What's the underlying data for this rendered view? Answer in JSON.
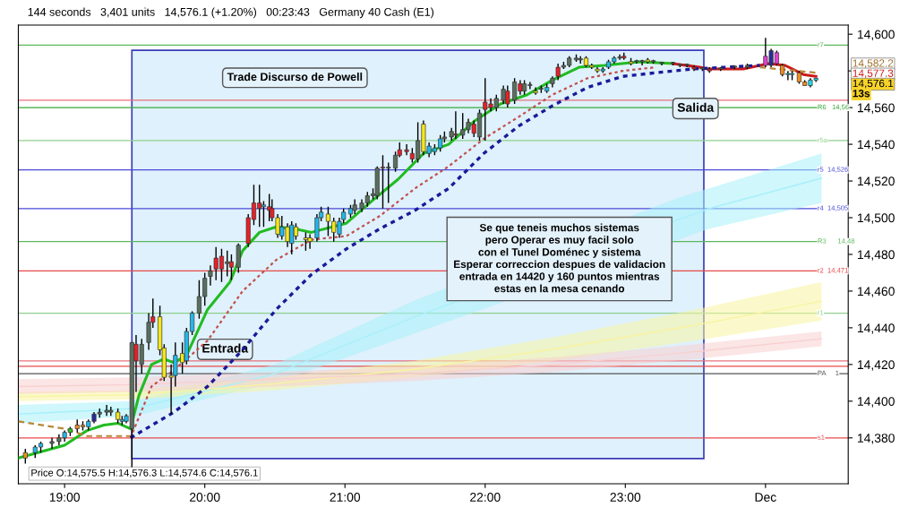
{
  "chart_data": {
    "type": "candlestick",
    "title": "144 seconds   3,401 units   14,576.1 (+1.20%)   00:23:43   Germany 40 Cash (E1)",
    "xlim": [
      18.67,
      24.59
    ],
    "ylim": [
      14355,
      14605
    ],
    "xticks": [
      {
        "value": 19,
        "label": "19:00"
      },
      {
        "value": 20,
        "label": "20:00"
      },
      {
        "value": 21,
        "label": "21:00"
      },
      {
        "value": 22,
        "label": "22:00"
      },
      {
        "value": 23,
        "label": "23:00"
      },
      {
        "value": 24,
        "label": "Dec"
      }
    ],
    "yticks": [
      {
        "value": 14380,
        "label": "14,380"
      },
      {
        "value": 14400,
        "label": "14,400"
      },
      {
        "value": 14420,
        "label": "14,420"
      },
      {
        "value": 14440,
        "label": "14,440"
      },
      {
        "value": 14460,
        "label": "14,460"
      },
      {
        "value": 14480,
        "label": "14,480"
      },
      {
        "value": 14500,
        "label": "14,500"
      },
      {
        "value": 14520,
        "label": "14,520"
      },
      {
        "value": 14540,
        "label": "14,540"
      },
      {
        "value": 14560,
        "label": "14,560"
      },
      {
        "value": 14580,
        "label": null
      },
      {
        "value": 14600,
        "label": "14,600"
      }
    ],
    "grid": false,
    "legend": false,
    "bands": [
      {
        "axis": "x",
        "from": 19.48,
        "to": 23.56,
        "label": "Trade Discurso de Powell",
        "color": "#dff1fc"
      }
    ],
    "ref_lines": [
      {
        "axis": "y",
        "value": 14594,
        "label": "r7",
        "color": "#5cb85c"
      },
      {
        "axis": "y",
        "value": 14564,
        "label": null,
        "color": "#e8707a"
      },
      {
        "axis": "y",
        "value": 14560,
        "label": "R6   14,56",
        "color": "#3aa83a"
      },
      {
        "axis": "y",
        "value": 14542,
        "label": "r5a",
        "color": "#8fd08f"
      },
      {
        "axis": "y",
        "value": 14526,
        "label": "r5  14,526",
        "color": "#4a4ad8"
      },
      {
        "axis": "y",
        "value": 14505,
        "label": "r4  14,505",
        "color": "#4a4ad8"
      },
      {
        "axis": "y",
        "value": 14487,
        "label": "R3      14,48",
        "color": "#5cb85c"
      },
      {
        "axis": "y",
        "value": 14471,
        "label": "r2  14,471",
        "color": "#e84a4a"
      },
      {
        "axis": "y",
        "value": 14448,
        "label": "r1",
        "color": "#8fd08f"
      },
      {
        "axis": "y",
        "value": 14422,
        "label": null,
        "color": "#e8707a"
      },
      {
        "axis": "y",
        "value": 14419,
        "label": null,
        "color": "#e84a4a"
      },
      {
        "axis": "y",
        "value": 14415,
        "label": "PA     1",
        "color": "#555555"
      },
      {
        "axis": "y",
        "value": 14380,
        "label": "s1",
        "color": "#e84a4a"
      }
    ],
    "annotations": [
      "Entrada",
      "Salida",
      "Se que teneis muchos sistemas\npero Operar es muy facil solo\ncon el Tunel Doménec y sistema\nEsperar correccion despues de validacion\nentrada en 14420 y 160 puntos mientras\nestas en la mesa cenando",
      "14,582.2",
      "14,577.3",
      "14,576.1",
      "13s",
      "Price O:14,575.5 H:14,576.3 L:14,574.6 C:14,576.1"
    ],
    "series": [
      {
        "type": "line",
        "color": "#a8f0fa",
        "x": [
          18.67,
          19.5,
          20.5,
          21.5,
          23.38,
          23.6,
          24.4
        ],
        "values": [
          14393,
          14396,
          14415,
          14446,
          14499,
          14505,
          14521.5
        ],
        "lower": [
          14388,
          14392,
          14410,
          14437,
          14488,
          14494,
          14508
        ],
        "upper": [
          14398,
          14400,
          14420,
          14455,
          14511,
          14516,
          14535
        ]
      },
      {
        "type": "line",
        "color": "#f8f4a0",
        "x": [
          18.67,
          19.5,
          20.5,
          21.5,
          22.5,
          23.5,
          24.4
        ],
        "values": [
          14402.5,
          14403.5,
          14409.5,
          14417.5,
          14428.5,
          14441.5,
          14454.5
        ],
        "lower": [
          14400,
          14401,
          14406,
          14413,
          14422,
          14433,
          14444
        ],
        "upper": [
          14405,
          14406,
          14413,
          14422,
          14435,
          14450,
          14465
        ]
      },
      {
        "type": "line",
        "color": "#f8d0d0",
        "x": [
          18.67,
          19.5,
          20.5,
          21.5,
          22.5,
          23.5,
          24.4
        ],
        "values": [
          14408,
          14409,
          14412,
          14415,
          14420,
          14427,
          14434
        ],
        "lower": [
          14404,
          14405,
          14408,
          14411,
          14416,
          14423,
          14430
        ],
        "upper": [
          14412,
          14413,
          14416,
          14419,
          14424,
          14431,
          14438
        ]
      },
      {
        "type": "line",
        "color": "#b8863a",
        "line_style": "dashed",
        "x": [
          18.67,
          19.0,
          19.16,
          19.47,
          19.5,
          23.96,
          24.36
        ],
        "values": [
          14389,
          14385,
          14381,
          14381,
          null,
          14582,
          14579
        ]
      },
      {
        "type": "line",
        "color": "#c0504d",
        "line_style": "dotted",
        "x": [
          19.47,
          19.62,
          19.78,
          20.02,
          20.27,
          20.51,
          20.76,
          21.01,
          21.25,
          21.5,
          21.74,
          21.99,
          22.24,
          22.48,
          22.73,
          22.98,
          23.22
        ],
        "values": [
          14380,
          14408,
          14417,
          14433,
          14460,
          14477,
          14488,
          14490,
          14501,
          14516,
          14528,
          14543,
          14555,
          14567,
          14576,
          14580,
          14582
        ]
      },
      {
        "type": "line",
        "color": "#1a1a9a",
        "line_style": "dotted",
        "x": [
          19.47,
          19.78,
          20.02,
          20.27,
          20.51,
          20.76,
          21.01,
          21.25,
          21.5,
          21.74,
          21.99,
          22.24,
          22.48,
          22.73,
          22.98,
          23.22,
          23.47,
          23.71,
          23.96
        ],
        "values": [
          14380,
          14394,
          14408,
          14428,
          14450,
          14469,
          14483,
          14494,
          14504,
          14516,
          14535,
          14550,
          14561,
          14571,
          14577,
          14579,
          14581,
          14582,
          14583
        ]
      },
      {
        "type": "line",
        "color": "#22bb22",
        "line_style": "solid",
        "x": [
          18.67,
          19.0,
          19.16,
          19.28,
          19.38,
          19.47,
          19.53,
          19.62,
          19.71,
          19.78,
          19.87,
          20.02,
          20.18,
          20.27,
          20.39,
          20.51,
          20.64,
          20.76,
          21.01,
          21.19,
          21.38,
          21.56,
          21.74,
          21.93,
          22.11,
          22.3,
          22.48,
          22.67,
          22.85,
          23.1,
          23.34
        ],
        "values": [
          14369,
          14376,
          14384,
          14387,
          14388,
          14385,
          14403,
          14420,
          14423,
          14421,
          14425,
          14450,
          14465,
          14482,
          14492,
          14495,
          14494,
          14492,
          14497,
          14509,
          14521,
          14535,
          14540,
          14553,
          14562,
          14567,
          14575,
          14582,
          14583,
          14585,
          14584
        ]
      },
      {
        "type": "line",
        "color": "#cc1a1a",
        "line_style": "solid",
        "x": [
          23.34,
          23.53,
          23.59,
          23.84,
          24.02,
          24.14,
          24.27,
          24.36
        ],
        "values": [
          14584,
          14582,
          14581,
          14581,
          14584,
          14583,
          14578,
          14577
        ]
      },
      {
        "x": [
          18.72,
          18.79,
          18.83,
          18.91,
          18.96,
          19.0,
          19.04,
          19.09,
          19.13,
          19.17,
          19.21,
          19.25,
          19.3,
          19.33,
          19.38,
          19.41,
          19.44,
          19.48,
          19.51,
          19.55,
          19.6,
          19.63,
          19.68,
          19.71,
          19.76,
          19.79,
          19.84,
          19.87,
          19.91,
          19.96,
          20.0,
          20.04,
          20.08,
          20.12,
          20.16,
          20.19,
          20.24,
          20.31,
          20.35,
          20.39,
          20.42,
          20.46,
          20.48,
          20.52,
          20.55,
          20.59,
          20.62,
          20.65,
          20.72,
          20.75,
          20.8,
          20.83,
          20.88,
          20.92,
          20.96,
          20.99,
          21.04,
          21.07,
          21.12,
          21.16,
          21.2,
          21.23,
          21.27,
          21.31,
          21.36,
          21.39,
          21.44,
          21.48,
          21.52,
          21.56,
          21.6,
          21.64,
          21.68,
          21.71,
          21.76,
          21.79,
          21.84,
          21.88,
          21.92,
          21.96,
          22.0,
          22.04,
          22.08,
          22.13,
          22.16,
          22.21,
          22.25,
          22.28,
          22.32,
          22.36,
          22.4,
          22.44,
          22.48,
          22.52,
          22.56,
          22.6,
          22.65,
          22.68,
          22.72,
          22.76,
          22.8,
          22.84,
          22.88,
          22.92,
          22.96,
          22.99,
          23.04,
          23.08,
          23.12,
          23.16,
          23.2,
          23.26,
          23.34,
          23.39,
          23.44,
          23.49,
          23.55,
          23.6,
          23.68,
          23.78,
          23.87,
          24.0,
          24.04,
          24.08,
          24.12,
          24.16,
          24.19,
          24.24,
          24.28,
          24.32,
          24.36
        ],
        "ohlc": [
          [
            14372,
            14374,
            14366,
            14369
          ],
          [
            14372,
            14376,
            14369,
            14375
          ],
          [
            14375,
            14378,
            14372,
            14377
          ],
          [
            14377,
            14380,
            14374,
            14378
          ],
          [
            14378,
            14382,
            14376,
            14380
          ],
          [
            14380,
            14384,
            14378,
            14383
          ],
          [
            14383,
            14386,
            14381,
            14385
          ],
          [
            14387,
            14390,
            14383,
            14385
          ],
          [
            14387,
            14389,
            14384,
            14386
          ],
          [
            14386,
            14390,
            14384,
            14389
          ],
          [
            14389,
            14394,
            14388,
            14393
          ],
          [
            14393,
            14396,
            14391,
            14394
          ],
          [
            14394,
            14398,
            14392,
            14395
          ],
          [
            14394,
            14397,
            14392,
            14395
          ],
          [
            14394,
            14396,
            14388,
            14390
          ],
          [
            14390,
            14392,
            14387,
            14389
          ],
          [
            14389,
            14393,
            14388,
            14392
          ],
          [
            14385,
            14432,
            14364,
            14432
          ],
          [
            14431,
            14436,
            14405,
            14422
          ],
          [
            14420,
            14434,
            14415,
            14431
          ],
          [
            14432,
            14448,
            14428,
            14443
          ],
          [
            14446,
            14456,
            14440,
            14443
          ],
          [
            14446,
            14452,
            14425,
            14428
          ],
          [
            14429,
            14431,
            14411,
            14413
          ],
          [
            14414,
            14420,
            14393,
            14413
          ],
          [
            14414,
            14432,
            14408,
            14425
          ],
          [
            14426,
            14432,
            14415,
            14421
          ],
          [
            14422,
            14440,
            14420,
            14438
          ],
          [
            14438,
            14449,
            14436,
            14448
          ],
          [
            14448,
            14466,
            14445,
            14457
          ],
          [
            14457,
            14470,
            14452,
            14467
          ],
          [
            14468,
            14474,
            14463,
            14471
          ],
          [
            14478,
            14484,
            14466,
            14472
          ],
          [
            14479,
            14483,
            14465,
            14472
          ],
          [
            14475,
            14482,
            14468,
            14476
          ],
          [
            14476,
            14480,
            14466,
            14473
          ],
          [
            14473,
            14486,
            14470,
            14485
          ],
          [
            14500,
            14502,
            14484,
            14486
          ],
          [
            14508,
            14518,
            14496,
            14499
          ],
          [
            14508,
            14518,
            14495,
            14505
          ],
          [
            14506,
            14509,
            14495,
            14507
          ],
          [
            14506,
            14513,
            14498,
            14504
          ],
          [
            14505,
            14510,
            14498,
            14500
          ],
          [
            14500,
            14502,
            14489,
            14491
          ],
          [
            14490,
            14501,
            14488,
            14495
          ],
          [
            14495,
            14497,
            14484,
            14487
          ],
          [
            14486,
            14498,
            14480,
            14496
          ],
          [
            14495,
            14497,
            14488,
            14490
          ],
          [
            14489,
            14492,
            14482,
            14488
          ],
          [
            14489,
            14491,
            14483,
            14487
          ],
          [
            14489,
            14502,
            14487,
            14500
          ],
          [
            14500,
            14506,
            14498,
            14503
          ],
          [
            14502,
            14506,
            14490,
            14498
          ],
          [
            14498,
            14500,
            14487,
            14492
          ],
          [
            14491,
            14500,
            14489,
            14498
          ],
          [
            14499,
            14505,
            14497,
            14503
          ],
          [
            14502,
            14507,
            14500,
            14505
          ],
          [
            14504,
            14510,
            14502,
            14507
          ],
          [
            14505,
            14510,
            14503,
            14508
          ],
          [
            14508,
            14514,
            14506,
            14512
          ],
          [
            14512,
            14516,
            14510,
            14513
          ],
          [
            14512,
            14528,
            14510,
            14527
          ],
          [
            14527,
            14534,
            14505,
            14527
          ],
          [
            14527,
            14530,
            14508,
            14527
          ],
          [
            14527,
            14536,
            14525,
            14534
          ],
          [
            14537,
            14541,
            14533,
            14534
          ],
          [
            14537,
            14540,
            14534,
            14536
          ],
          [
            14535,
            14538,
            14530,
            14532
          ],
          [
            14532,
            14552,
            14530,
            14542
          ],
          [
            14551,
            14553,
            14534,
            14536
          ],
          [
            14535,
            14541,
            14533,
            14539
          ],
          [
            14536,
            14540,
            14534,
            14538
          ],
          [
            14538,
            14545,
            14536,
            14543
          ],
          [
            14543,
            14547,
            14541,
            14544
          ],
          [
            14544,
            14549,
            14542,
            14547
          ],
          [
            14545,
            14558,
            14543,
            14545
          ],
          [
            14545,
            14557,
            14543,
            14548
          ],
          [
            14548,
            14554,
            14546,
            14552
          ],
          [
            14551,
            14553,
            14544,
            14546
          ],
          [
            14544,
            14559,
            14542,
            14557
          ],
          [
            14563,
            14576,
            14542,
            14559
          ],
          [
            14562,
            14565,
            14558,
            14560
          ],
          [
            14560,
            14567,
            14558,
            14565
          ],
          [
            14564,
            14572,
            14562,
            14570
          ],
          [
            14569,
            14572,
            14560,
            14562
          ],
          [
            14564,
            14576,
            14562,
            14574
          ],
          [
            14573,
            14575,
            14567,
            14569
          ],
          [
            14569,
            14575,
            14567,
            14573
          ],
          [
            14572,
            14574,
            14570,
            14572
          ],
          [
            14569,
            14571,
            14567,
            14568
          ],
          [
            14570,
            14572,
            14568,
            14570
          ],
          [
            14569,
            14573,
            14568,
            14571
          ],
          [
            14573,
            14577,
            14571,
            14576
          ],
          [
            14582,
            14584,
            14575,
            14577
          ],
          [
            14582,
            14585,
            14581,
            14583
          ],
          [
            14583,
            14588,
            14582,
            14587
          ],
          [
            14586,
            14589,
            14585,
            14587
          ],
          [
            14586,
            14588,
            14584,
            14586
          ],
          [
            14587,
            14588,
            14582,
            14583
          ],
          [
            14583,
            14584,
            14581,
            14582
          ],
          [
            14581,
            14582,
            14579,
            14580
          ],
          [
            14580,
            14582,
            14579,
            14581
          ],
          [
            14582,
            14586,
            14581,
            14585
          ],
          [
            14585,
            14588,
            14584,
            14587
          ],
          [
            14587,
            14589,
            14586,
            14587
          ],
          [
            14587,
            14590,
            14586,
            14588
          ],
          [
            14585,
            14587,
            14583,
            14584
          ],
          [
            14585,
            14586,
            14584,
            14585
          ],
          [
            14585,
            14586,
            14583,
            14585
          ],
          [
            14586,
            14587,
            14584,
            14585
          ],
          [
            14585,
            14586,
            14584,
            14585
          ],
          [
            14584,
            14585,
            14583,
            14584
          ],
          [
            14584,
            14585,
            14583,
            14584
          ],
          [
            14583,
            14584,
            14582,
            14583
          ],
          [
            14583,
            14584,
            14582,
            14583
          ],
          [
            14582,
            14583,
            14580,
            14581
          ],
          [
            14581,
            14582,
            14580,
            14581
          ],
          [
            14581,
            14582,
            14579,
            14580
          ],
          [
            14581,
            14582,
            14580,
            14581
          ],
          [
            14582,
            14583,
            14581,
            14582
          ],
          [
            14582,
            14584,
            14581,
            14583
          ],
          [
            14583,
            14598,
            14582,
            14588
          ],
          [
            14583,
            14592,
            14582,
            14591
          ],
          [
            14590,
            14591,
            14583,
            14584
          ],
          [
            14583,
            14584,
            14577,
            14578
          ],
          [
            14578,
            14580,
            14575,
            14578
          ],
          [
            14578,
            14580,
            14575,
            14578
          ],
          [
            14579,
            14580,
            14573,
            14574
          ],
          [
            14574,
            14575,
            14572,
            14572
          ],
          [
            14572,
            14576,
            14571,
            14575
          ],
          [
            14575,
            14576,
            14574,
            14576
          ]
        ],
        "colors": [
          "#f08c1e",
          "#22b8e8",
          "#22b8e8",
          "#5a6e5e",
          "#5a6e5e",
          "#22b8e8",
          "#22cc22",
          "#f08c1e",
          "#f08c1e",
          "#22b8e8",
          "#2a2a9a",
          "#5a6e5e",
          "#5a6e5e",
          "#5a6e5e",
          "#f5e61a",
          "#22b8e8",
          "#22b8e8",
          "#5a6e5e",
          "#e82028",
          "#5a6e5e",
          "#5a6e5e",
          "#e82028",
          "#f5e61a",
          "#f5e61a",
          "#f5e61a",
          "#22b8e8",
          "#f5e61a",
          "#22b8e8",
          "#22b8e8",
          "#5a6e5e",
          "#5a6e5e",
          "#5a6e5e",
          "#e82028",
          "#e82028",
          "#5a6e5e",
          "#e82028",
          "#5a6e5e",
          "#e82028",
          "#e82028",
          "#e82028",
          "#22b8e8",
          "#e82028",
          "#e82028",
          "#f5e61a",
          "#22b8e8",
          "#f5e61a",
          "#22b8e8",
          "#f5e61a",
          "#f5e61a",
          "#f5e61a",
          "#22b8e8",
          "#22b8e8",
          "#f5e61a",
          "#f5e61a",
          "#22b8e8",
          "#22b8e8",
          "#22b8e8",
          "#5a6e5e",
          "#5a6e5e",
          "#5a6e5e",
          "#5a6e5e",
          "#5a6e5e",
          "#e82028",
          "#5a6e5e",
          "#5a6e5e",
          "#e82028",
          "#e82028",
          "#e82028",
          "#5a6e5e",
          "#f5e61a",
          "#22b8e8",
          "#22b8e8",
          "#22b8e8",
          "#5a6e5e",
          "#5a6e5e",
          "#e82028",
          "#5a6e5e",
          "#5a6e5e",
          "#e82028",
          "#5a6e5e",
          "#e82028",
          "#e82028",
          "#5a6e5e",
          "#5a6e5e",
          "#e82028",
          "#5a6e5e",
          "#e82028",
          "#5a6e5e",
          "#5a6e5e",
          "#f5e61a",
          "#5a6e5e",
          "#22b8e8",
          "#5a6e5e",
          "#e82028",
          "#5a6e5e",
          "#5a6e5e",
          "#5a6e5e",
          "#5a6e5e",
          "#f5e61a",
          "#f5e61a",
          "#f5e61a",
          "#22b8e8",
          "#22b8e8",
          "#22b8e8",
          "#5a6e5e",
          "#e82028",
          "#f5e61a",
          "#5a6e5e",
          "#5a6e5e",
          "#f5e61a",
          "#5a6e5e",
          "#5a6e5e",
          "#5a6e5e",
          "#5a6e5e",
          "#5a6e5e",
          "#e82028",
          "#5a6e5e",
          "#e82028",
          "#5a6e5e",
          "#5a6e5e",
          "#5a6e5e",
          "#e040d0",
          "#2a2a9a",
          "#e040d0",
          "#f08c1e",
          "#22d8e8",
          "#22d8e8",
          "#f08c1e",
          "#f08c1e",
          "#22d8e8",
          "#22d8e8"
        ]
      }
    ]
  }
}
